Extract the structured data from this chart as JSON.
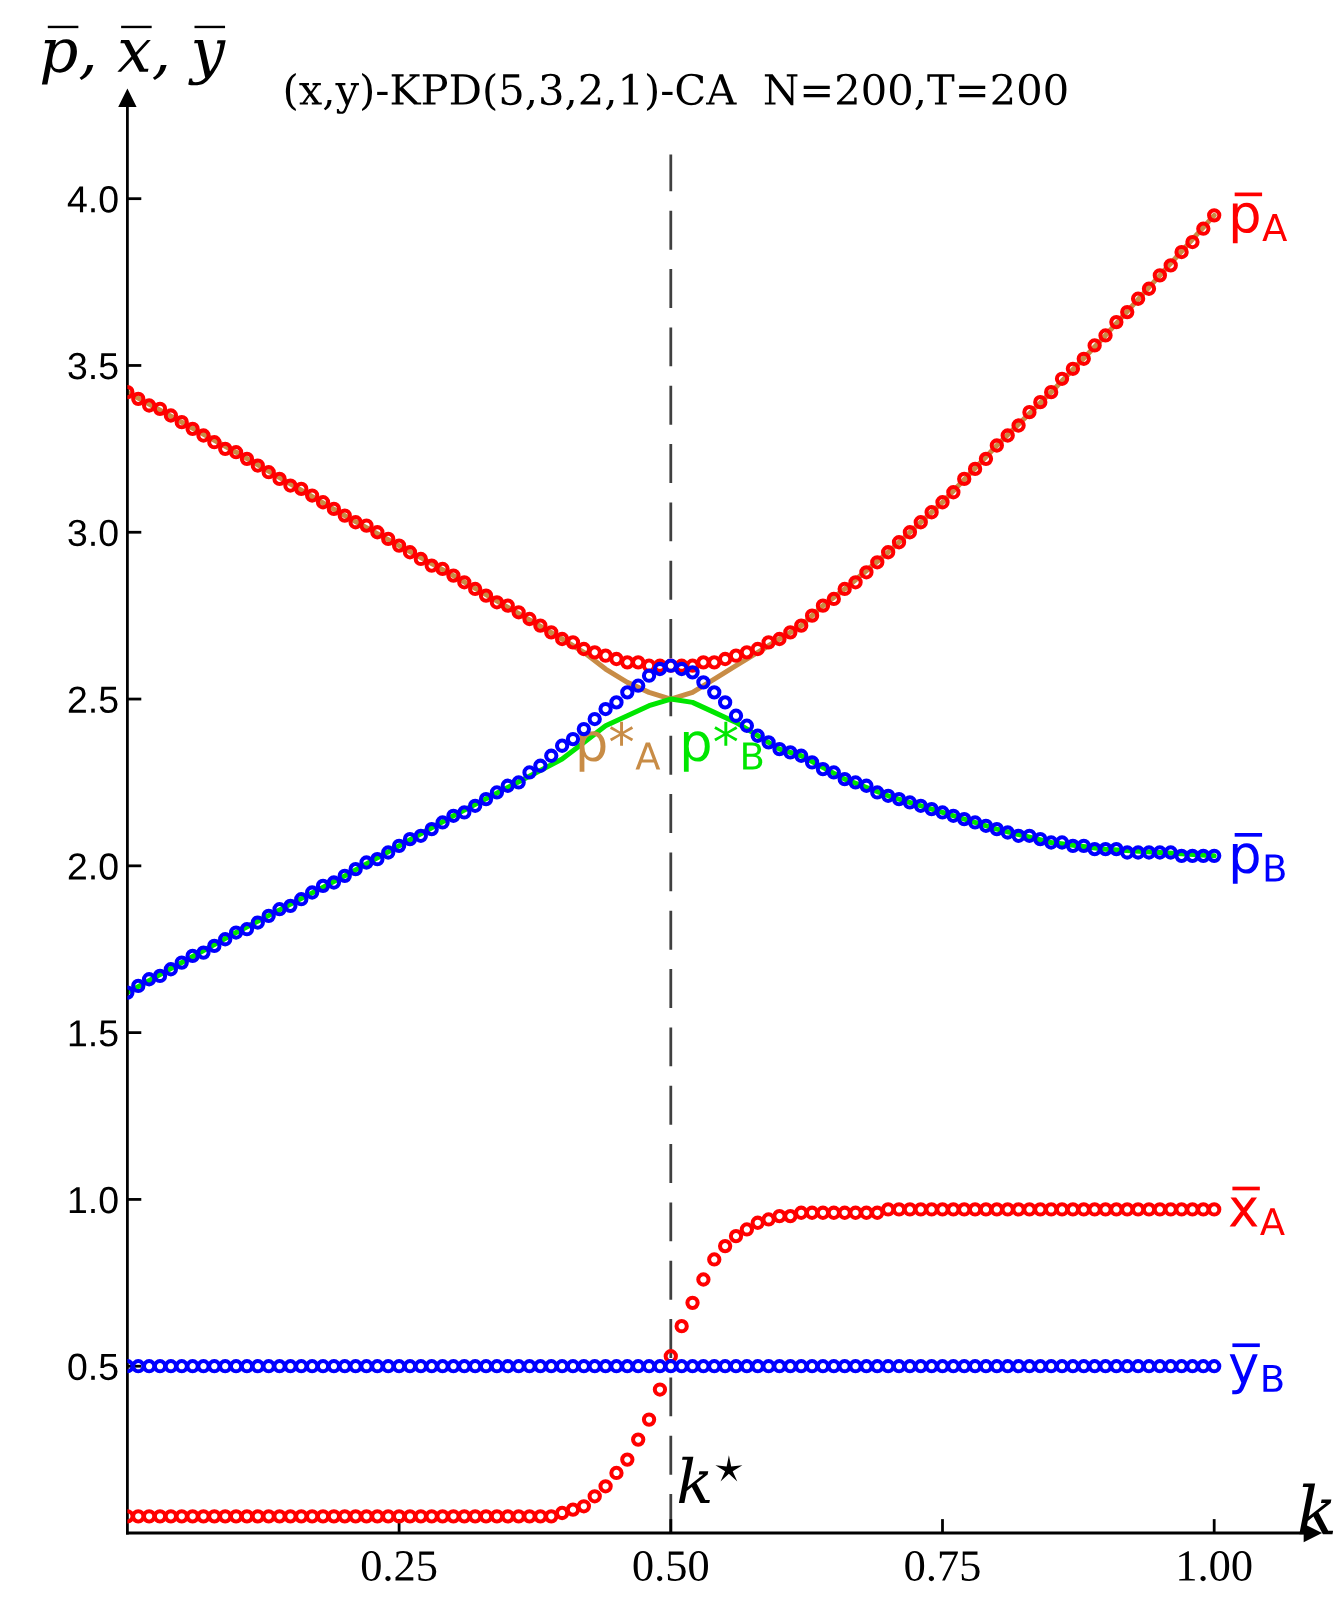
{
  "chart_data": {
    "type": "scatter",
    "title": "(x,y)-KPD(5,3,2,1)-CA  N=200,T=200",
    "xlabel": "k",
    "ylabel": "p̅, x̅, y̅",
    "xlim": [
      0,
      1.09
    ],
    "ylim": [
      0,
      4.3
    ],
    "xticks": [
      {
        "value": 0.25,
        "label": "0.25"
      },
      {
        "value": 0.5,
        "label": "0.50"
      },
      {
        "value": 0.75,
        "label": "0.75"
      },
      {
        "value": 1.0,
        "label": "1.00"
      }
    ],
    "yticks": [
      {
        "value": 0.5,
        "label": "0.5"
      },
      {
        "value": 1.0,
        "label": "1.0"
      },
      {
        "value": 1.5,
        "label": "1.5"
      },
      {
        "value": 2.0,
        "label": "2.0"
      },
      {
        "value": 2.5,
        "label": "2.5"
      },
      {
        "value": 3.0,
        "label": "3.0"
      },
      {
        "value": 3.5,
        "label": "3.5"
      },
      {
        "value": 4.0,
        "label": "4.0"
      }
    ],
    "ref_lines": [
      {
        "axis": "x",
        "value": 0.5,
        "label": "k$^{⋆}$",
        "color": "#404040",
        "line_style": "dashed"
      }
    ],
    "x": [
      0.0,
      0.01,
      0.02,
      0.03,
      0.04,
      0.05,
      0.06,
      0.07,
      0.08,
      0.09,
      0.1,
      0.11,
      0.12,
      0.13,
      0.14,
      0.15,
      0.16,
      0.17,
      0.18,
      0.19,
      0.2,
      0.21,
      0.22,
      0.23,
      0.24,
      0.25,
      0.26,
      0.27,
      0.28,
      0.29,
      0.3,
      0.31,
      0.32,
      0.33,
      0.34,
      0.35,
      0.36,
      0.37,
      0.38,
      0.39,
      0.4,
      0.41,
      0.42,
      0.43,
      0.44,
      0.45,
      0.46,
      0.47,
      0.48,
      0.49,
      0.5,
      0.51,
      0.52,
      0.53,
      0.54,
      0.55,
      0.56,
      0.57,
      0.58,
      0.59,
      0.6,
      0.61,
      0.62,
      0.63,
      0.64,
      0.65,
      0.66,
      0.67,
      0.68,
      0.69,
      0.7,
      0.71,
      0.72,
      0.73,
      0.74,
      0.75,
      0.76,
      0.77,
      0.78,
      0.79,
      0.8,
      0.81,
      0.82,
      0.83,
      0.84,
      0.85,
      0.86,
      0.87,
      0.88,
      0.89,
      0.9,
      0.91,
      0.92,
      0.93,
      0.94,
      0.95,
      0.96,
      0.97,
      0.98,
      0.99,
      1.0
    ],
    "series": [
      {
        "type": "line",
        "name": "p*$_{A}$",
        "color": "#c88c46",
        "line_style": "solid",
        "x": [
          0,
          0.1,
          0.2,
          0.3,
          0.4,
          0.42,
          0.44,
          0.46,
          0.48,
          0.5,
          0.52,
          0.54,
          0.56,
          0.58,
          0.6,
          0.62,
          0.64,
          0.66,
          0.7,
          0.75,
          0.8,
          0.85,
          0.9,
          0.95,
          1.0
        ],
        "values": [
          3.42,
          3.24,
          3.05,
          2.87,
          2.68,
          2.64,
          2.59,
          2.55,
          2.52,
          2.5,
          2.52,
          2.56,
          2.6,
          2.64,
          2.68,
          2.72,
          2.78,
          2.83,
          2.94,
          3.09,
          3.26,
          3.42,
          3.59,
          3.77,
          3.95
        ]
      },
      {
        "type": "line",
        "name": "p*$_{B}$",
        "color": "#00e600",
        "line_style": "solid",
        "x": [
          0,
          0.1,
          0.2,
          0.3,
          0.4,
          0.42,
          0.44,
          0.46,
          0.48,
          0.5,
          0.52,
          0.54,
          0.56,
          0.58,
          0.6,
          0.62,
          0.66,
          0.7,
          0.75,
          0.8,
          0.85,
          0.9,
          0.95,
          1.0
        ],
        "values": [
          1.62,
          1.8,
          1.97,
          2.15,
          2.32,
          2.37,
          2.42,
          2.45,
          2.48,
          2.5,
          2.49,
          2.46,
          2.43,
          2.39,
          2.35,
          2.33,
          2.26,
          2.21,
          2.16,
          2.11,
          2.07,
          2.05,
          2.04,
          2.03
        ]
      },
      {
        "name": "p̅$_{A}$",
        "color": "#ff0000",
        "marker": "circle",
        "values": [
          3.42,
          3.4,
          3.38,
          3.37,
          3.35,
          3.33,
          3.31,
          3.29,
          3.27,
          3.25,
          3.24,
          3.22,
          3.2,
          3.18,
          3.16,
          3.14,
          3.13,
          3.11,
          3.09,
          3.07,
          3.05,
          3.03,
          3.02,
          3.0,
          2.98,
          2.96,
          2.94,
          2.92,
          2.9,
          2.89,
          2.87,
          2.85,
          2.83,
          2.81,
          2.79,
          2.78,
          2.76,
          2.74,
          2.72,
          2.7,
          2.68,
          2.67,
          2.65,
          2.64,
          2.63,
          2.62,
          2.61,
          2.61,
          2.6,
          2.6,
          2.6,
          2.6,
          2.6,
          2.61,
          2.61,
          2.62,
          2.63,
          2.64,
          2.65,
          2.67,
          2.68,
          2.7,
          2.72,
          2.75,
          2.78,
          2.8,
          2.83,
          2.85,
          2.88,
          2.91,
          2.94,
          2.97,
          3.0,
          3.03,
          3.06,
          3.09,
          3.12,
          3.16,
          3.19,
          3.22,
          3.26,
          3.29,
          3.32,
          3.36,
          3.39,
          3.42,
          3.46,
          3.49,
          3.52,
          3.56,
          3.59,
          3.63,
          3.66,
          3.7,
          3.73,
          3.77,
          3.8,
          3.84,
          3.87,
          3.91,
          3.95
        ]
      },
      {
        "name": "p̅$_{B}$",
        "color": "#0000ff",
        "marker": "circle",
        "values": [
          1.62,
          1.64,
          1.66,
          1.67,
          1.69,
          1.71,
          1.73,
          1.74,
          1.76,
          1.78,
          1.8,
          1.81,
          1.83,
          1.85,
          1.87,
          1.88,
          1.9,
          1.92,
          1.94,
          1.95,
          1.97,
          1.99,
          2.01,
          2.02,
          2.04,
          2.06,
          2.08,
          2.09,
          2.11,
          2.13,
          2.15,
          2.16,
          2.18,
          2.2,
          2.22,
          2.24,
          2.25,
          2.28,
          2.3,
          2.33,
          2.36,
          2.38,
          2.41,
          2.44,
          2.47,
          2.49,
          2.52,
          2.54,
          2.57,
          2.59,
          2.6,
          2.59,
          2.58,
          2.55,
          2.52,
          2.49,
          2.45,
          2.42,
          2.39,
          2.37,
          2.35,
          2.34,
          2.33,
          2.31,
          2.29,
          2.28,
          2.26,
          2.25,
          2.24,
          2.22,
          2.21,
          2.2,
          2.19,
          2.18,
          2.17,
          2.16,
          2.15,
          2.14,
          2.13,
          2.12,
          2.11,
          2.1,
          2.09,
          2.09,
          2.08,
          2.07,
          2.07,
          2.06,
          2.06,
          2.05,
          2.05,
          2.05,
          2.04,
          2.04,
          2.04,
          2.04,
          2.04,
          2.03,
          2.03,
          2.03,
          2.03
        ]
      },
      {
        "name": "x̅$_{A}$",
        "color": "#ff0000",
        "marker": "circle",
        "values": [
          0.05,
          0.05,
          0.05,
          0.05,
          0.05,
          0.05,
          0.05,
          0.05,
          0.05,
          0.05,
          0.05,
          0.05,
          0.05,
          0.05,
          0.05,
          0.05,
          0.05,
          0.05,
          0.05,
          0.05,
          0.05,
          0.05,
          0.05,
          0.05,
          0.05,
          0.05,
          0.05,
          0.05,
          0.05,
          0.05,
          0.05,
          0.05,
          0.05,
          0.05,
          0.05,
          0.05,
          0.05,
          0.05,
          0.05,
          0.05,
          0.06,
          0.07,
          0.08,
          0.11,
          0.14,
          0.18,
          0.22,
          0.28,
          0.34,
          0.43,
          0.53,
          0.62,
          0.69,
          0.76,
          0.82,
          0.86,
          0.89,
          0.91,
          0.93,
          0.94,
          0.95,
          0.95,
          0.96,
          0.96,
          0.96,
          0.96,
          0.96,
          0.96,
          0.96,
          0.96,
          0.97,
          0.97,
          0.97,
          0.97,
          0.97,
          0.97,
          0.97,
          0.97,
          0.97,
          0.97,
          0.97,
          0.97,
          0.97,
          0.97,
          0.97,
          0.97,
          0.97,
          0.97,
          0.97,
          0.97,
          0.97,
          0.97,
          0.97,
          0.97,
          0.97,
          0.97,
          0.97,
          0.97,
          0.97,
          0.97,
          0.97
        ]
      },
      {
        "name": "y̅$_{B}$",
        "color": "#0000ff",
        "marker": "circle",
        "values": [
          0.5,
          0.5,
          0.5,
          0.5,
          0.5,
          0.5,
          0.5,
          0.5,
          0.5,
          0.5,
          0.5,
          0.5,
          0.5,
          0.5,
          0.5,
          0.5,
          0.5,
          0.5,
          0.5,
          0.5,
          0.5,
          0.5,
          0.5,
          0.5,
          0.5,
          0.5,
          0.5,
          0.5,
          0.5,
          0.5,
          0.5,
          0.5,
          0.5,
          0.5,
          0.5,
          0.5,
          0.5,
          0.5,
          0.5,
          0.5,
          0.5,
          0.5,
          0.5,
          0.5,
          0.5,
          0.5,
          0.5,
          0.5,
          0.5,
          0.5,
          0.5,
          0.5,
          0.5,
          0.5,
          0.5,
          0.5,
          0.5,
          0.5,
          0.5,
          0.5,
          0.5,
          0.5,
          0.5,
          0.5,
          0.5,
          0.5,
          0.5,
          0.5,
          0.5,
          0.5,
          0.5,
          0.5,
          0.5,
          0.5,
          0.5,
          0.5,
          0.5,
          0.5,
          0.5,
          0.5,
          0.5,
          0.5,
          0.5,
          0.5,
          0.5,
          0.5,
          0.5,
          0.5,
          0.5,
          0.5,
          0.5,
          0.5,
          0.5,
          0.5,
          0.5,
          0.5,
          0.5,
          0.5,
          0.5,
          0.5,
          0.5
        ]
      }
    ]
  }
}
